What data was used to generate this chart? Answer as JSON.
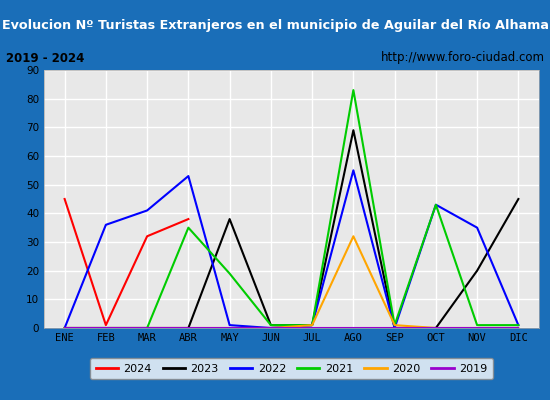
{
  "title": "Evolucion Nº Turistas Extranjeros en el municipio de Aguilar del Río Alhama",
  "subtitle_left": "2019 - 2024",
  "subtitle_right": "http://www.foro-ciudad.com",
  "months": [
    "ENE",
    "FEB",
    "MAR",
    "ABR",
    "MAY",
    "JUN",
    "JUL",
    "AGO",
    "SEP",
    "OCT",
    "NOV",
    "DIC"
  ],
  "series": {
    "2024": [
      45,
      1,
      32,
      38,
      null,
      null,
      null,
      null,
      null,
      null,
      null,
      null
    ],
    "2023": [
      0,
      0,
      0,
      0,
      38,
      1,
      1,
      69,
      0,
      0,
      20,
      45
    ],
    "2022": [
      0,
      36,
      41,
      53,
      1,
      0,
      1,
      55,
      0,
      43,
      35,
      1
    ],
    "2021": [
      0,
      0,
      0,
      35,
      19,
      1,
      1,
      83,
      1,
      43,
      1,
      1
    ],
    "2020": [
      0,
      0,
      0,
      0,
      0,
      0,
      1,
      32,
      1,
      0,
      0,
      0
    ],
    "2019": [
      0,
      0,
      0,
      0,
      0,
      0,
      0,
      0,
      0,
      0,
      0,
      0
    ]
  },
  "colors": {
    "2024": "#ff0000",
    "2023": "#000000",
    "2022": "#0000ff",
    "2021": "#00cc00",
    "2020": "#ffa500",
    "2019": "#9900cc"
  },
  "ylim": [
    0,
    90
  ],
  "yticks": [
    0,
    10,
    20,
    30,
    40,
    50,
    60,
    70,
    80,
    90
  ],
  "title_bg": "#1a6eb8",
  "title_color": "#ffffff",
  "subtitle_bg": "#d4d4d4",
  "plot_bg": "#e8e8e8",
  "grid_color": "#ffffff",
  "outer_bg": "#1a6eb8",
  "legend_order": [
    "2024",
    "2023",
    "2022",
    "2021",
    "2020",
    "2019"
  ]
}
